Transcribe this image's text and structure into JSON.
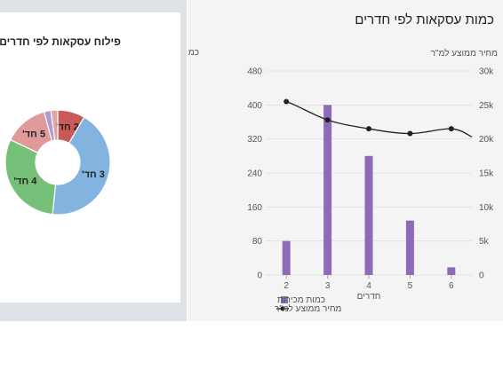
{
  "colors": {
    "bar": "#8e6bb8",
    "line": "#222222",
    "grid": "#e2e2e2",
    "slice_2": "#c85a5a",
    "slice_3": "#82b4df",
    "slice_4": "#76c07a",
    "slice_5": "#e09a9a",
    "slice_small": "#b09ad4"
  },
  "chart_data": [
    {
      "type": "pie",
      "title": "פילוח עסקאות לפי חדרים",
      "slices": [
        {
          "label": "2 חד'",
          "value": 8
        },
        {
          "label": "3 חד'",
          "value": 41
        },
        {
          "label": "4 חד'",
          "value": 29
        },
        {
          "label": "5 חד'",
          "value": 13
        },
        {
          "label": "",
          "value": 2
        },
        {
          "label": "",
          "value": 2
        }
      ]
    },
    {
      "type": "bar",
      "title": "כמות עסקאות לפי חדרים",
      "categories": [
        "2",
        "3",
        "4",
        "5",
        "6"
      ],
      "xlabel": "חדרים",
      "ylabel": "כמות עסקאות",
      "y2label": "מחיר ממוצע למ\"ר",
      "ylim": [
        0,
        480
      ],
      "y2lim": [
        0,
        30000
      ],
      "yticks": [
        "0",
        "80",
        "160",
        "240",
        "320",
        "400",
        "480"
      ],
      "y2ticks": [
        "0",
        "5k",
        "10k",
        "15k",
        "20k",
        "25k",
        "30k"
      ],
      "series": [
        {
          "name": "כמות מכירות",
          "kind": "bar",
          "values": [
            80,
            400,
            280,
            128,
            18
          ]
        },
        {
          "name": "מחיר ממוצע למ\"ר",
          "kind": "line",
          "values": [
            25500,
            22800,
            21500,
            20800,
            21500
          ]
        }
      ],
      "grid": true,
      "legend_position": "bottom-right"
    }
  ]
}
